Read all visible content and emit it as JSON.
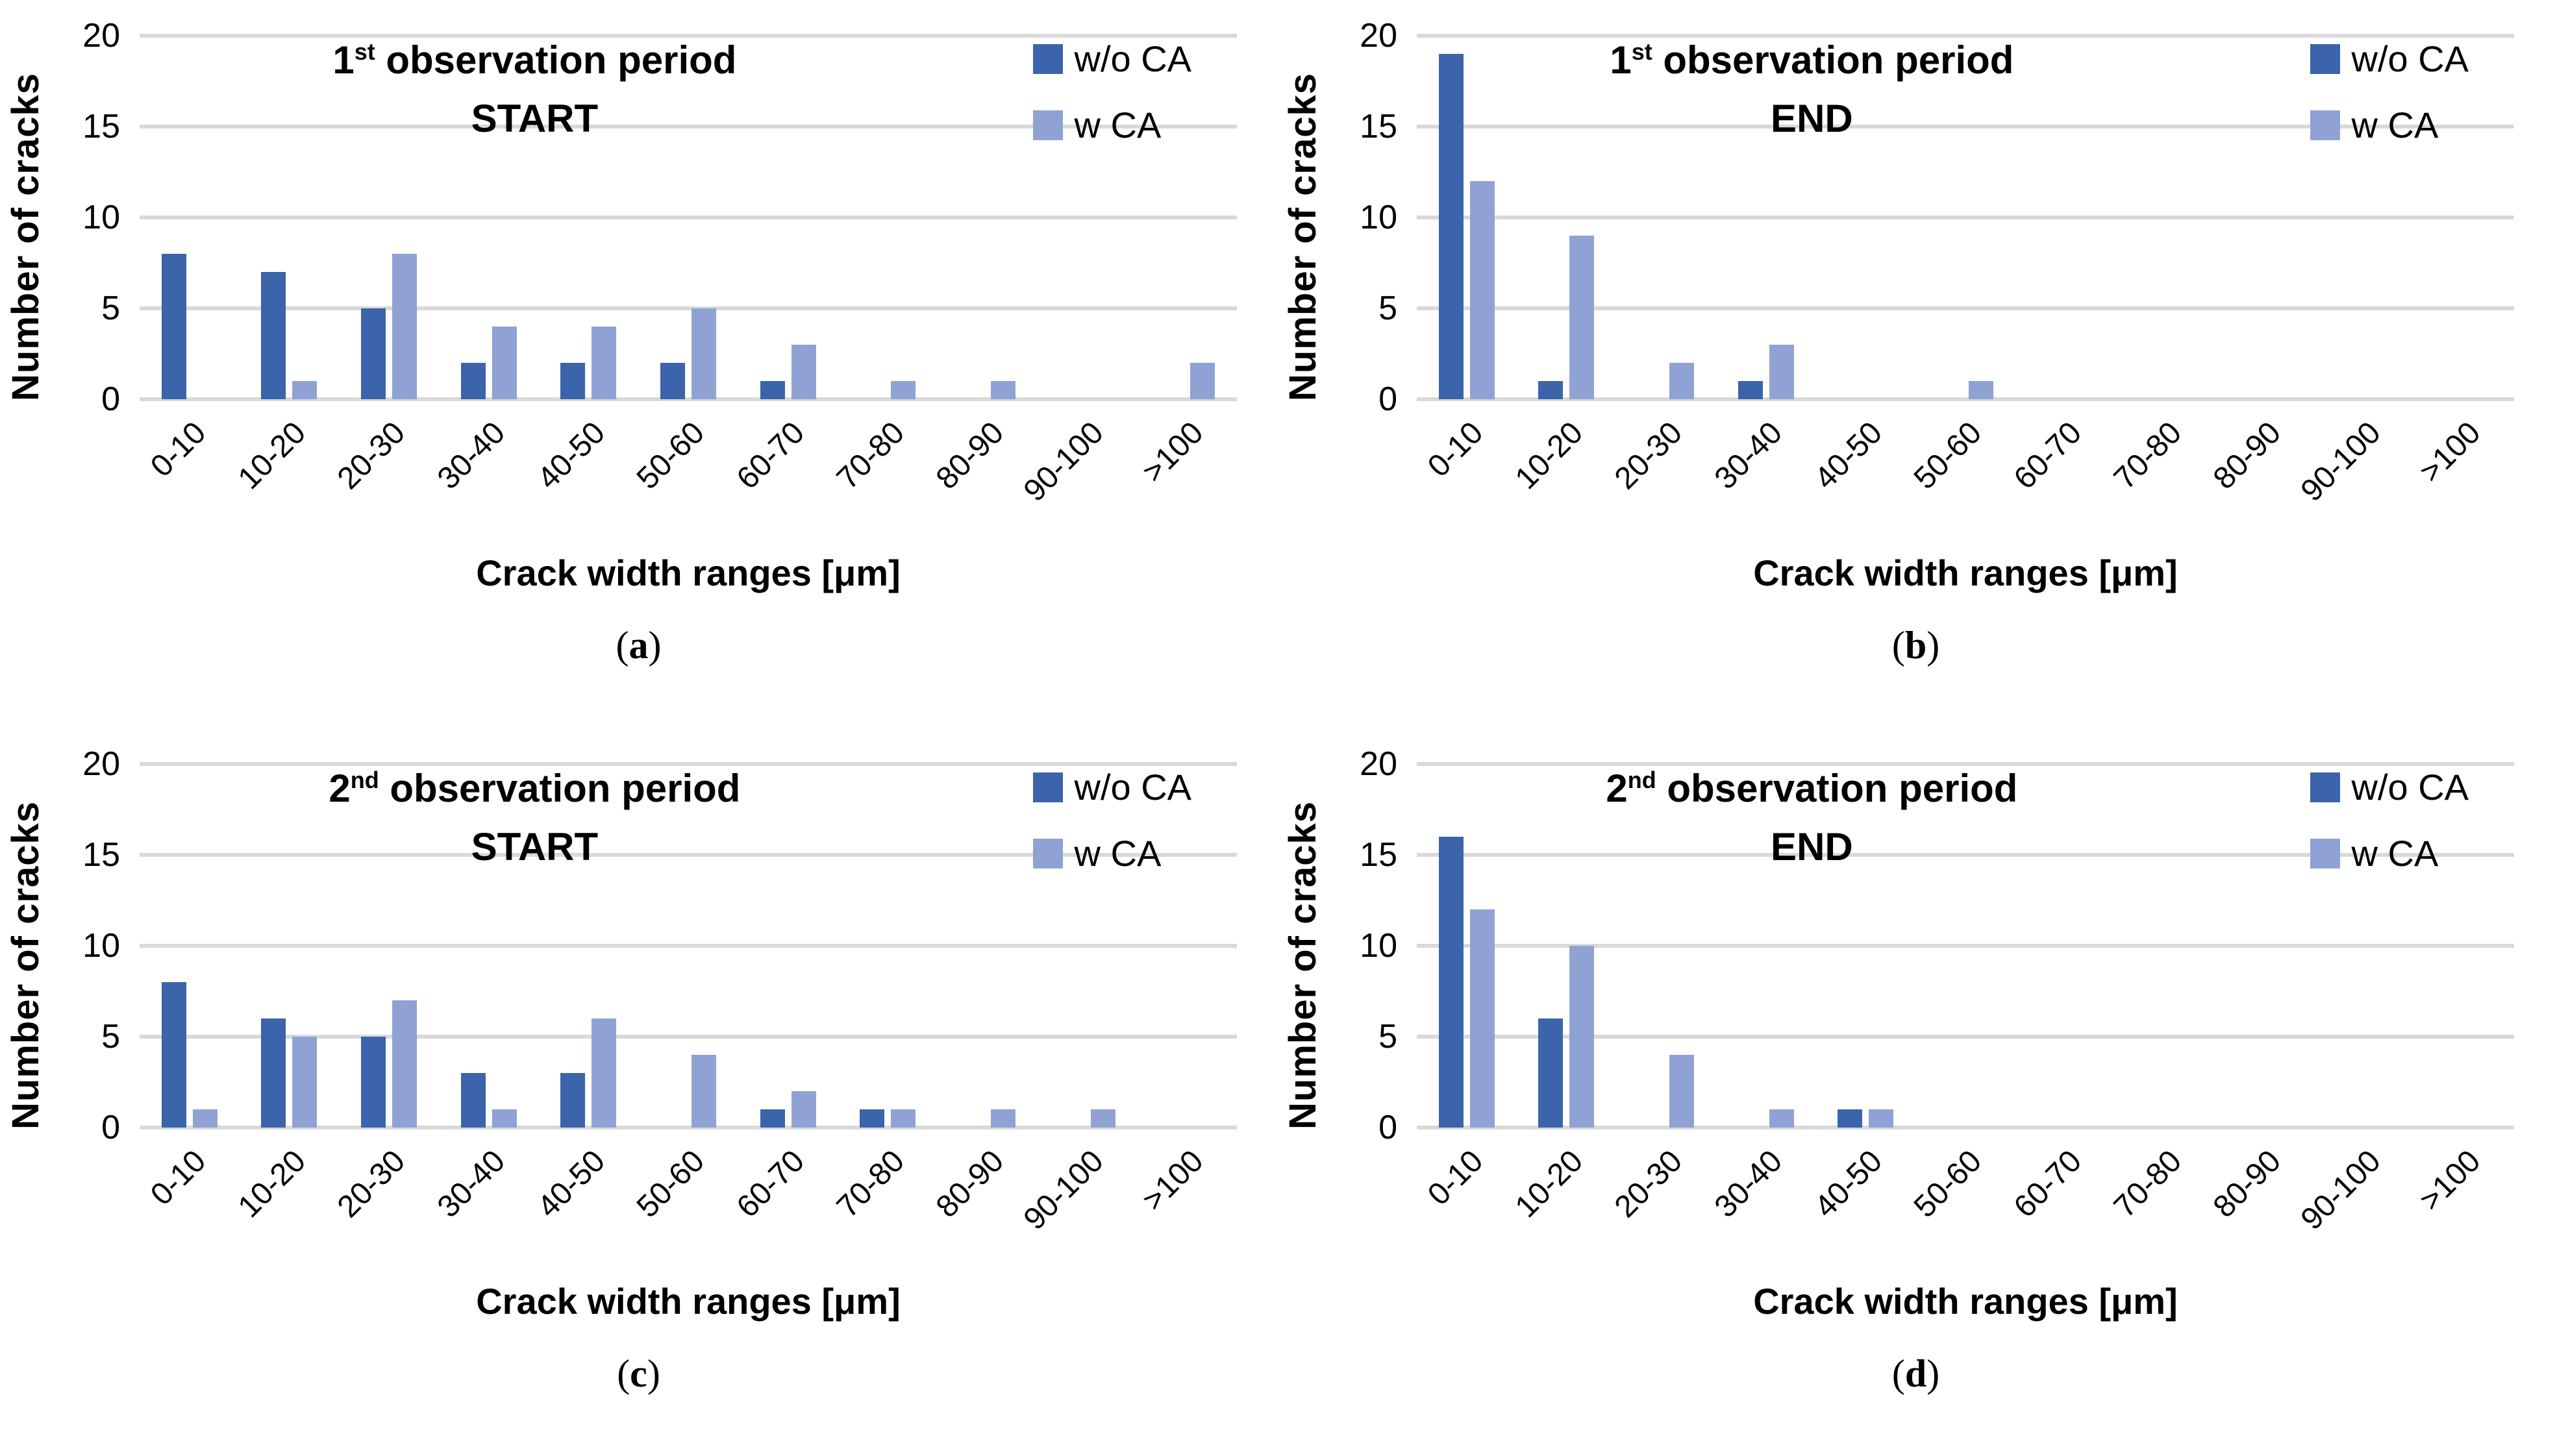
{
  "figure": {
    "background": "#FFFFFF",
    "gridline_color": "#D9D9D9",
    "yticks": [
      0,
      5,
      10,
      15,
      20
    ],
    "legend": [
      {
        "label": "w/o CA",
        "color": "#3B64AB"
      },
      {
        "label": "w CA",
        "color": "#8FA2D3"
      }
    ]
  },
  "chart_data": [
    {
      "type": "bar",
      "panel": "a",
      "caption": {
        "open": "(",
        "letter": "a",
        "close": ")"
      },
      "title": {
        "num": "1",
        "sup": "st",
        "rest": " observation period",
        "line2": "START"
      },
      "xlabel": "Crack width ranges [μm]",
      "ylabel": "Number of cracks",
      "ylim": [
        0,
        20
      ],
      "grid": true,
      "legend_position": "top-right",
      "categories": [
        "0-10",
        "10-20",
        "20-30",
        "30-40",
        "40-50",
        "50-60",
        "60-70",
        "70-80",
        "80-90",
        "90-100",
        ">100"
      ],
      "series": [
        {
          "name": "w/o CA",
          "values": [
            8,
            7,
            5,
            2,
            2,
            2,
            1,
            0,
            0,
            0,
            0
          ]
        },
        {
          "name": "w CA",
          "values": [
            0,
            1,
            8,
            4,
            4,
            5,
            3,
            1,
            1,
            0,
            2
          ]
        }
      ]
    },
    {
      "type": "bar",
      "panel": "b",
      "caption": {
        "open": "(",
        "letter": "b",
        "close": ")"
      },
      "title": {
        "num": "1",
        "sup": "st",
        "rest": " observation period",
        "line2": "END"
      },
      "xlabel": "Crack width ranges [μm]",
      "ylabel": "Number of cracks",
      "ylim": [
        0,
        20
      ],
      "grid": true,
      "legend_position": "top-right",
      "categories": [
        "0-10",
        "10-20",
        "20-30",
        "30-40",
        "40-50",
        "50-60",
        "60-70",
        "70-80",
        "80-90",
        "90-100",
        ">100"
      ],
      "series": [
        {
          "name": "w/o CA",
          "values": [
            19,
            1,
            0,
            1,
            0,
            0,
            0,
            0,
            0,
            0,
            0
          ]
        },
        {
          "name": "w CA",
          "values": [
            12,
            9,
            2,
            3,
            0,
            1,
            0,
            0,
            0,
            0,
            0
          ]
        }
      ]
    },
    {
      "type": "bar",
      "panel": "c",
      "caption": {
        "open": "(",
        "letter": "c",
        "close": ")"
      },
      "title": {
        "num": "2",
        "sup": "nd",
        "rest": " observation period",
        "line2": "START"
      },
      "xlabel": "Crack width ranges [μm]",
      "ylabel": "Number of cracks",
      "ylim": [
        0,
        20
      ],
      "grid": true,
      "legend_position": "top-right",
      "categories": [
        "0-10",
        "10-20",
        "20-30",
        "30-40",
        "40-50",
        "50-60",
        "60-70",
        "70-80",
        "80-90",
        "90-100",
        ">100"
      ],
      "series": [
        {
          "name": "w/o CA",
          "values": [
            8,
            6,
            5,
            3,
            3,
            0,
            1,
            1,
            0,
            0,
            0
          ]
        },
        {
          "name": "w CA",
          "values": [
            1,
            5,
            7,
            1,
            6,
            4,
            2,
            1,
            1,
            1,
            0
          ]
        }
      ]
    },
    {
      "type": "bar",
      "panel": "d",
      "caption": {
        "open": "(",
        "letter": "d",
        "close": ")"
      },
      "title": {
        "num": "2",
        "sup": "nd",
        "rest": " observation period",
        "line2": "END"
      },
      "xlabel": "Crack width ranges [μm]",
      "ylabel": "Number of cracks",
      "ylim": [
        0,
        20
      ],
      "grid": true,
      "legend_position": "top-right",
      "categories": [
        "0-10",
        "10-20",
        "20-30",
        "30-40",
        "40-50",
        "50-60",
        "60-70",
        "70-80",
        "80-90",
        "90-100",
        ">100"
      ],
      "series": [
        {
          "name": "w/o CA",
          "values": [
            16,
            6,
            0,
            0,
            1,
            0,
            0,
            0,
            0,
            0,
            0
          ]
        },
        {
          "name": "w CA",
          "values": [
            12,
            10,
            4,
            1,
            1,
            0,
            0,
            0,
            0,
            0,
            0
          ]
        }
      ]
    }
  ]
}
